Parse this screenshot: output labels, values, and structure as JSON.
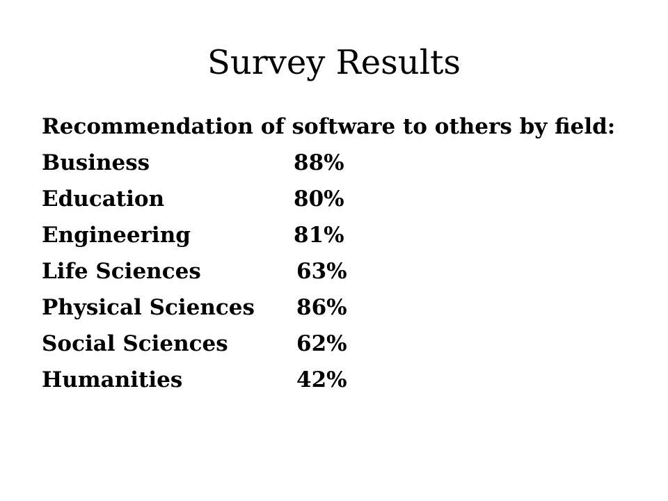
{
  "slide": {
    "title": "Survey Results",
    "intro": "Recommendation of software to others by field:",
    "rows": [
      {
        "field": "Business",
        "percent": "88%"
      },
      {
        "field": "Education",
        "percent": "80%"
      },
      {
        "field": "Engineering",
        "percent": "81%"
      },
      {
        "field": "Life Sciences",
        "percent": "63%"
      },
      {
        "field": "Physical Sciences",
        "percent": "86%"
      },
      {
        "field": "Social Sciences",
        "percent": "62%"
      },
      {
        "field": "Humanities",
        "percent": "42%"
      }
    ]
  }
}
